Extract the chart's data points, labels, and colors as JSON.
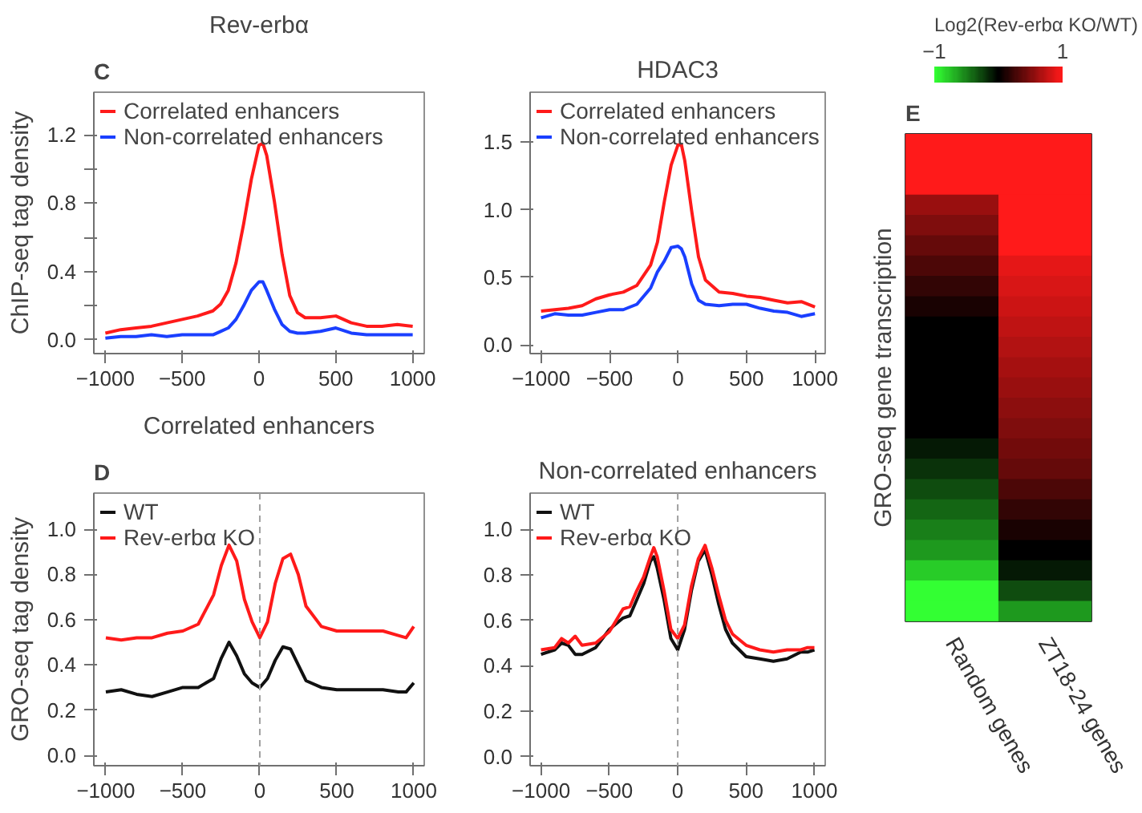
{
  "chart_data": [
    {
      "type": "line",
      "title": "Rev-erbα",
      "ylabel": "ChIP-seq tag density",
      "annotations": [
        "C"
      ],
      "legend": "top left",
      "grid": false,
      "marker": "none",
      "line_style": "solid",
      "xlim": [
        -1075,
        1075
      ],
      "xticks": [
        -1000,
        -500,
        0,
        500,
        1000
      ],
      "ylim": [
        -0.08,
        1.45
      ],
      "yticks": [
        {
          "value": 0,
          "label": "0.0"
        },
        {
          "value": 0.2,
          "label": null
        },
        {
          "value": 0.4,
          "label": "0.4"
        },
        {
          "value": 0.6,
          "label": null
        },
        {
          "value": 0.8,
          "label": "0.8"
        },
        {
          "value": 1.0,
          "label": null
        },
        {
          "value": 1.2,
          "label": "1.2"
        }
      ],
      "x": [
        -1000,
        -900,
        -800,
        -700,
        -600,
        -500,
        -400,
        -300,
        -250,
        -200,
        -150,
        -100,
        -50,
        0,
        25,
        50,
        100,
        150,
        200,
        250,
        300,
        400,
        500,
        600,
        700,
        800,
        900,
        1000
      ],
      "series": [
        {
          "name": "Correlated enhancers",
          "color": "#ff1a1a",
          "values": [
            0.04,
            0.06,
            0.07,
            0.08,
            0.1,
            0.12,
            0.14,
            0.17,
            0.21,
            0.29,
            0.45,
            0.68,
            0.94,
            1.14,
            1.15,
            1.08,
            0.81,
            0.5,
            0.26,
            0.16,
            0.13,
            0.13,
            0.14,
            0.1,
            0.08,
            0.08,
            0.09,
            0.08
          ]
        },
        {
          "name": "Non-correlated enhancers",
          "color": "#1a3fff",
          "values": [
            0.01,
            0.02,
            0.02,
            0.03,
            0.02,
            0.03,
            0.03,
            0.03,
            0.05,
            0.07,
            0.12,
            0.2,
            0.29,
            0.34,
            0.34,
            0.29,
            0.18,
            0.09,
            0.05,
            0.04,
            0.04,
            0.05,
            0.07,
            0.04,
            0.03,
            0.03,
            0.03,
            0.03
          ]
        }
      ]
    },
    {
      "type": "line",
      "title": "HDAC3",
      "legend": "top left",
      "grid": false,
      "marker": "none",
      "line_style": "solid",
      "xlim": [
        -1080,
        1075
      ],
      "xticks": [
        -1000,
        -500,
        0,
        500,
        1000
      ],
      "ylim": [
        -0.065,
        1.87
      ],
      "yticks": [
        {
          "value": 0,
          "label": "0.0"
        },
        0.5,
        {
          "value": 1.0,
          "label": "1.0"
        },
        1.5
      ],
      "x": [
        -1000,
        -900,
        -800,
        -700,
        -600,
        -500,
        -400,
        -300,
        -200,
        -150,
        -100,
        -50,
        0,
        25,
        50,
        100,
        150,
        200,
        300,
        400,
        500,
        600,
        700,
        800,
        900,
        1000
      ],
      "series": [
        {
          "name": "Correlated enhancers",
          "color": "#ff1a1a",
          "values": [
            0.25,
            0.26,
            0.27,
            0.29,
            0.34,
            0.37,
            0.39,
            0.44,
            0.59,
            0.76,
            1.06,
            1.33,
            1.48,
            1.48,
            1.36,
            0.99,
            0.65,
            0.48,
            0.39,
            0.38,
            0.36,
            0.35,
            0.33,
            0.31,
            0.32,
            0.28
          ]
        },
        {
          "name": "Non-correlated enhancers",
          "color": "#1a3fff",
          "values": [
            0.2,
            0.23,
            0.22,
            0.22,
            0.24,
            0.26,
            0.26,
            0.3,
            0.42,
            0.54,
            0.62,
            0.72,
            0.73,
            0.71,
            0.65,
            0.45,
            0.33,
            0.3,
            0.29,
            0.3,
            0.3,
            0.27,
            0.25,
            0.24,
            0.21,
            0.23
          ]
        }
      ]
    },
    {
      "type": "line",
      "title": "Correlated enhancers",
      "ylabel": "GRO-seq tag density",
      "annotations": [
        "D"
      ],
      "legend": "top left",
      "grid": false,
      "marker": "none",
      "line_style": "solid",
      "xlim": [
        -1078,
        1068
      ],
      "xticks": [
        -1000,
        -500,
        0,
        500,
        1000
      ],
      "ylim": [
        -0.046,
        1.16
      ],
      "yticks": [
        {
          "value": 0,
          "label": "0.0"
        },
        0.2,
        0.4,
        0.6,
        0.8,
        {
          "value": 1.0,
          "label": "1.0"
        }
      ],
      "ref_lines": [
        {
          "axis": "x",
          "value": 0,
          "label": null,
          "color": "#a0a0a0",
          "line_style": "dashed"
        }
      ],
      "x": [
        -1000,
        -900,
        -800,
        -700,
        -600,
        -500,
        -400,
        -300,
        -250,
        -200,
        -150,
        -100,
        -50,
        0,
        50,
        100,
        150,
        200,
        250,
        300,
        400,
        500,
        600,
        700,
        800,
        900,
        950,
        1000
      ],
      "series": [
        {
          "name": "WT",
          "color": "#111111",
          "values": [
            0.28,
            0.29,
            0.27,
            0.26,
            0.28,
            0.3,
            0.3,
            0.34,
            0.43,
            0.5,
            0.44,
            0.36,
            0.32,
            0.3,
            0.34,
            0.42,
            0.48,
            0.47,
            0.4,
            0.33,
            0.3,
            0.29,
            0.29,
            0.29,
            0.29,
            0.28,
            0.28,
            0.32
          ]
        },
        {
          "name": "Rev-erbα KO",
          "color": "#ff1a1a",
          "values": [
            0.52,
            0.51,
            0.52,
            0.52,
            0.54,
            0.55,
            0.58,
            0.71,
            0.84,
            0.93,
            0.86,
            0.69,
            0.59,
            0.52,
            0.59,
            0.76,
            0.87,
            0.89,
            0.8,
            0.66,
            0.57,
            0.55,
            0.55,
            0.55,
            0.55,
            0.53,
            0.52,
            0.57
          ]
        }
      ]
    },
    {
      "type": "line",
      "title": "Non-correlated enhancers",
      "legend": "top left",
      "grid": false,
      "marker": "none",
      "line_style": "solid",
      "xlim": [
        -1080,
        1079
      ],
      "xticks": [
        -1000,
        -500,
        0,
        500,
        1000
      ],
      "ylim": [
        -0.04,
        1.16
      ],
      "yticks": [
        {
          "value": 0,
          "label": "0.0"
        },
        0.2,
        0.4,
        0.6,
        0.8,
        {
          "value": 1.0,
          "label": "1.0"
        }
      ],
      "ref_lines": [
        {
          "axis": "x",
          "value": 0,
          "label": null,
          "color": "#a0a0a0",
          "line_style": "dashed"
        }
      ],
      "x": [
        -1000,
        -900,
        -850,
        -800,
        -750,
        -700,
        -600,
        -500,
        -400,
        -350,
        -300,
        -250,
        -200,
        -175,
        -150,
        -100,
        -50,
        0,
        50,
        100,
        150,
        200,
        250,
        300,
        350,
        400,
        500,
        600,
        700,
        800,
        900,
        950,
        1000
      ],
      "series": [
        {
          "name": "WT",
          "color": "#111111",
          "values": [
            0.45,
            0.47,
            0.5,
            0.49,
            0.45,
            0.45,
            0.48,
            0.56,
            0.61,
            0.62,
            0.69,
            0.76,
            0.86,
            0.88,
            0.83,
            0.69,
            0.52,
            0.47,
            0.56,
            0.73,
            0.86,
            0.91,
            0.8,
            0.67,
            0.56,
            0.5,
            0.44,
            0.43,
            0.42,
            0.43,
            0.46,
            0.46,
            0.47
          ]
        },
        {
          "name": "Rev-erbα KO",
          "color": "#ff1a1a",
          "values": [
            0.47,
            0.48,
            0.52,
            0.5,
            0.53,
            0.49,
            0.5,
            0.55,
            0.65,
            0.66,
            0.73,
            0.79,
            0.88,
            0.92,
            0.88,
            0.73,
            0.56,
            0.52,
            0.58,
            0.75,
            0.87,
            0.93,
            0.83,
            0.71,
            0.6,
            0.54,
            0.49,
            0.47,
            0.46,
            0.47,
            0.47,
            0.48,
            0.48
          ]
        }
      ]
    },
    {
      "type": "heatmap",
      "ylabel": "GRO-seq gene transcription",
      "annotations": [
        "E"
      ],
      "clabel": "Log2(Rev-erbα KO/WT)",
      "clim": [
        -1,
        1
      ],
      "cticks": [
        -1,
        1
      ],
      "categories": [
        "Random genes",
        "ZT18-24 genes"
      ],
      "y_categories": [
        null,
        null,
        null,
        null,
        null,
        null,
        null,
        null,
        null,
        null,
        null,
        null,
        null,
        null,
        null,
        null,
        null,
        null,
        null,
        null,
        null,
        null,
        null,
        null
      ],
      "cells": [
        [
          1,
          1
        ],
        [
          1,
          1
        ],
        [
          1,
          1
        ],
        [
          0.6,
          1
        ],
        [
          0.5,
          1
        ],
        [
          0.4,
          1
        ],
        [
          0.3,
          0.9
        ],
        [
          0.2,
          0.85
        ],
        [
          0.1,
          0.8
        ],
        [
          0,
          0.75
        ],
        [
          0,
          0.7
        ],
        [
          0,
          0.65
        ],
        [
          0,
          0.6
        ],
        [
          0,
          0.55
        ],
        [
          0,
          0.5
        ],
        [
          -0.1,
          0.45
        ],
        [
          -0.2,
          0.4
        ],
        [
          -0.3,
          0.3
        ],
        [
          -0.4,
          0.2
        ],
        [
          -0.5,
          0.1
        ],
        [
          -0.6,
          0
        ],
        [
          -0.8,
          -0.1
        ],
        [
          -1,
          -0.3
        ],
        [
          -1,
          -0.6
        ]
      ]
    }
  ]
}
